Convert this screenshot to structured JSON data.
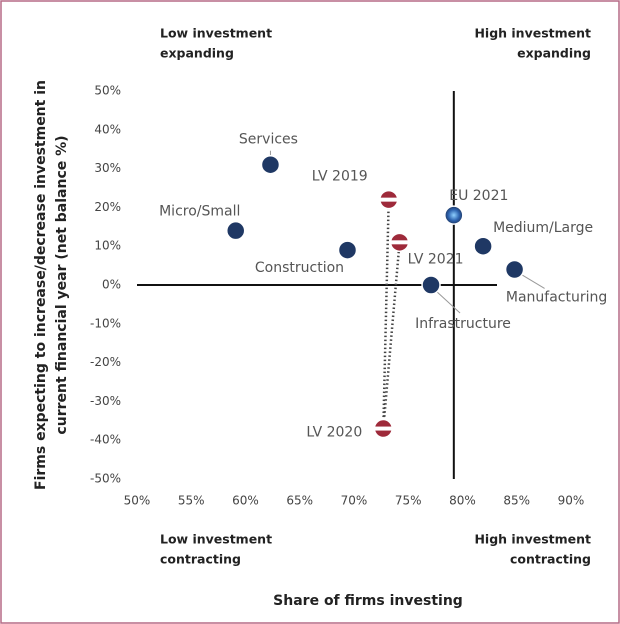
{
  "chart_data": {
    "type": "scatter",
    "xlabel": "Share of firms investing",
    "ylabel": [
      "Firms expecting to increase/decrease investment in",
      "current financial year  (net balance %)"
    ],
    "quadrants": {
      "top_left": [
        "Low investment",
        "expanding"
      ],
      "top_right": [
        "High investment",
        "expanding"
      ],
      "bottom_left": [
        "Low investment",
        "contracting"
      ],
      "bottom_right": [
        "High investment",
        "contracting"
      ]
    },
    "xlim": [
      50,
      90
    ],
    "xticks": [
      {
        "value": 50,
        "label": "50%"
      },
      {
        "value": 55,
        "label": "55%"
      },
      {
        "value": 60,
        "label": "60%"
      },
      {
        "value": 65,
        "label": "65%"
      },
      {
        "value": 70,
        "label": "70%"
      },
      {
        "value": 75,
        "label": "75%"
      },
      {
        "value": 80,
        "label": "80%"
      },
      {
        "value": 85,
        "label": "85%"
      },
      {
        "value": 90,
        "label": "90%"
      }
    ],
    "ylim": [
      -50,
      50
    ],
    "yticks": [
      {
        "value": -50,
        "label": "-50%"
      },
      {
        "value": -40,
        "label": "-40%"
      },
      {
        "value": -30,
        "label": "-30%"
      },
      {
        "value": -20,
        "label": "-20%"
      },
      {
        "value": -10,
        "label": "-10%"
      },
      {
        "value": 0,
        "label": "0%"
      },
      {
        "value": 10,
        "label": "10%"
      },
      {
        "value": 20,
        "label": "20%"
      },
      {
        "value": 30,
        "label": "30%"
      },
      {
        "value": 40,
        "label": "40%"
      },
      {
        "value": 50,
        "label": "50%"
      }
    ],
    "points": [
      {
        "label": "Services",
        "x": 62.3,
        "y": 31,
        "color": "#1f3864",
        "marker": "circle"
      },
      {
        "label": "Micro/Small",
        "x": 59.1,
        "y": 14,
        "color": "#1f3864",
        "marker": "circle"
      },
      {
        "label": "Construction",
        "x": 69.4,
        "y": 9,
        "color": "#1f3864",
        "marker": "circle"
      },
      {
        "label": "LV 2019",
        "x": 73.2,
        "y": 22,
        "color": "#9e2a3a",
        "marker": "flag"
      },
      {
        "label": "LV 2021",
        "x": 74.2,
        "y": 11,
        "color": "#9e2a3a",
        "marker": "flag"
      },
      {
        "label": "LV 2020",
        "x": 72.7,
        "y": -37,
        "color": "#9e2a3a",
        "marker": "flag"
      },
      {
        "label": "EU 2021",
        "x": 79.2,
        "y": 18,
        "color": "#2e64b0",
        "marker": "glow"
      },
      {
        "label": "Medium/Large",
        "x": 81.9,
        "y": 10,
        "color": "#1f3864",
        "marker": "circle"
      },
      {
        "label": "Manufacturing",
        "x": 84.8,
        "y": 4,
        "color": "#1f3864",
        "marker": "circle"
      },
      {
        "label": "Infrastructure",
        "x": 77.1,
        "y": 0,
        "color": "#1f3864",
        "marker": "circle"
      }
    ]
  }
}
